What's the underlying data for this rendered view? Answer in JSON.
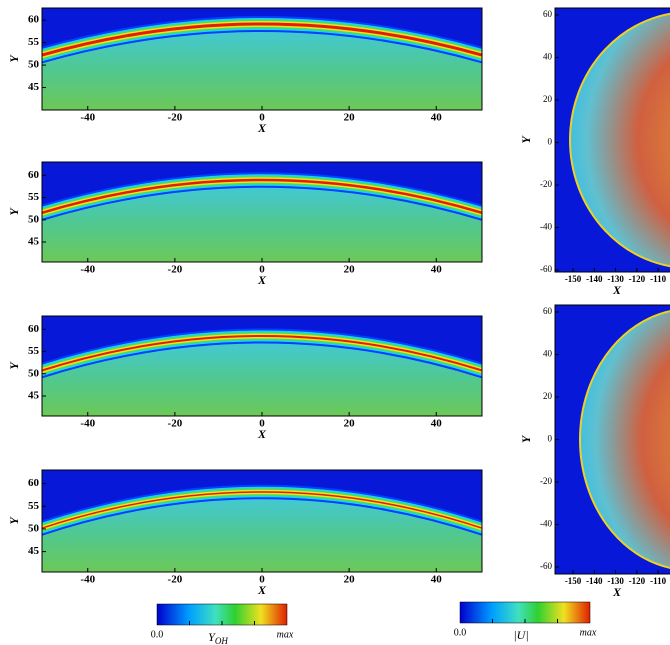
{
  "left_panels": [
    {
      "x_label": "X",
      "y_label": "Y",
      "xlim": [
        -50.5,
        50.5
      ],
      "ylim": [
        40,
        62.7
      ],
      "xticks": [
        -40,
        -20,
        0,
        20,
        40
      ],
      "yticks": [
        45,
        50,
        55,
        60
      ]
    },
    {
      "x_label": "X",
      "y_label": "Y",
      "xlim": [
        -50.5,
        50.5
      ],
      "ylim": [
        40.5,
        63
      ],
      "xticks": [
        -40,
        -20,
        0,
        20,
        40
      ],
      "yticks": [
        45,
        50,
        55,
        60
      ]
    },
    {
      "x_label": "X",
      "y_label": "Y",
      "xlim": [
        -50.5,
        50.5
      ],
      "ylim": [
        40.5,
        63
      ],
      "xticks": [
        -40,
        -20,
        0,
        20,
        40
      ],
      "yticks": [
        45,
        50,
        55,
        60
      ]
    },
    {
      "x_label": "X",
      "y_label": "Y",
      "xlim": [
        -50.5,
        50.5
      ],
      "ylim": [
        40.5,
        63
      ],
      "xticks": [
        -40,
        -20,
        0,
        20,
        40
      ],
      "yticks": [
        45,
        50,
        55,
        60
      ]
    }
  ],
  "right_panels": [
    {
      "x_label": "X",
      "y_label": "Y",
      "xlim": [
        -158.5,
        -104.4
      ],
      "ylim": [
        -60.9,
        63.3
      ],
      "xticks": [
        -150,
        -140,
        -130,
        -120,
        -110
      ],
      "yticks": [
        -60,
        -40,
        -20,
        0,
        20,
        40,
        60
      ]
    },
    {
      "x_label": "X",
      "y_label": "Y",
      "xlim": [
        -158.5,
        -104.4
      ],
      "ylim": [
        -63.3,
        63.3
      ],
      "xticks": [
        -150,
        -140,
        -130,
        -120,
        -110
      ],
      "yticks": [
        -60,
        -40,
        -20,
        0,
        20,
        40,
        60
      ]
    }
  ],
  "colorbars": [
    {
      "min_label": "0.0",
      "label": "Y",
      "label_subscript": "OH",
      "max_label": "max"
    },
    {
      "min_label": "0.0",
      "label": "|U|",
      "max_label": "max"
    }
  ]
}
